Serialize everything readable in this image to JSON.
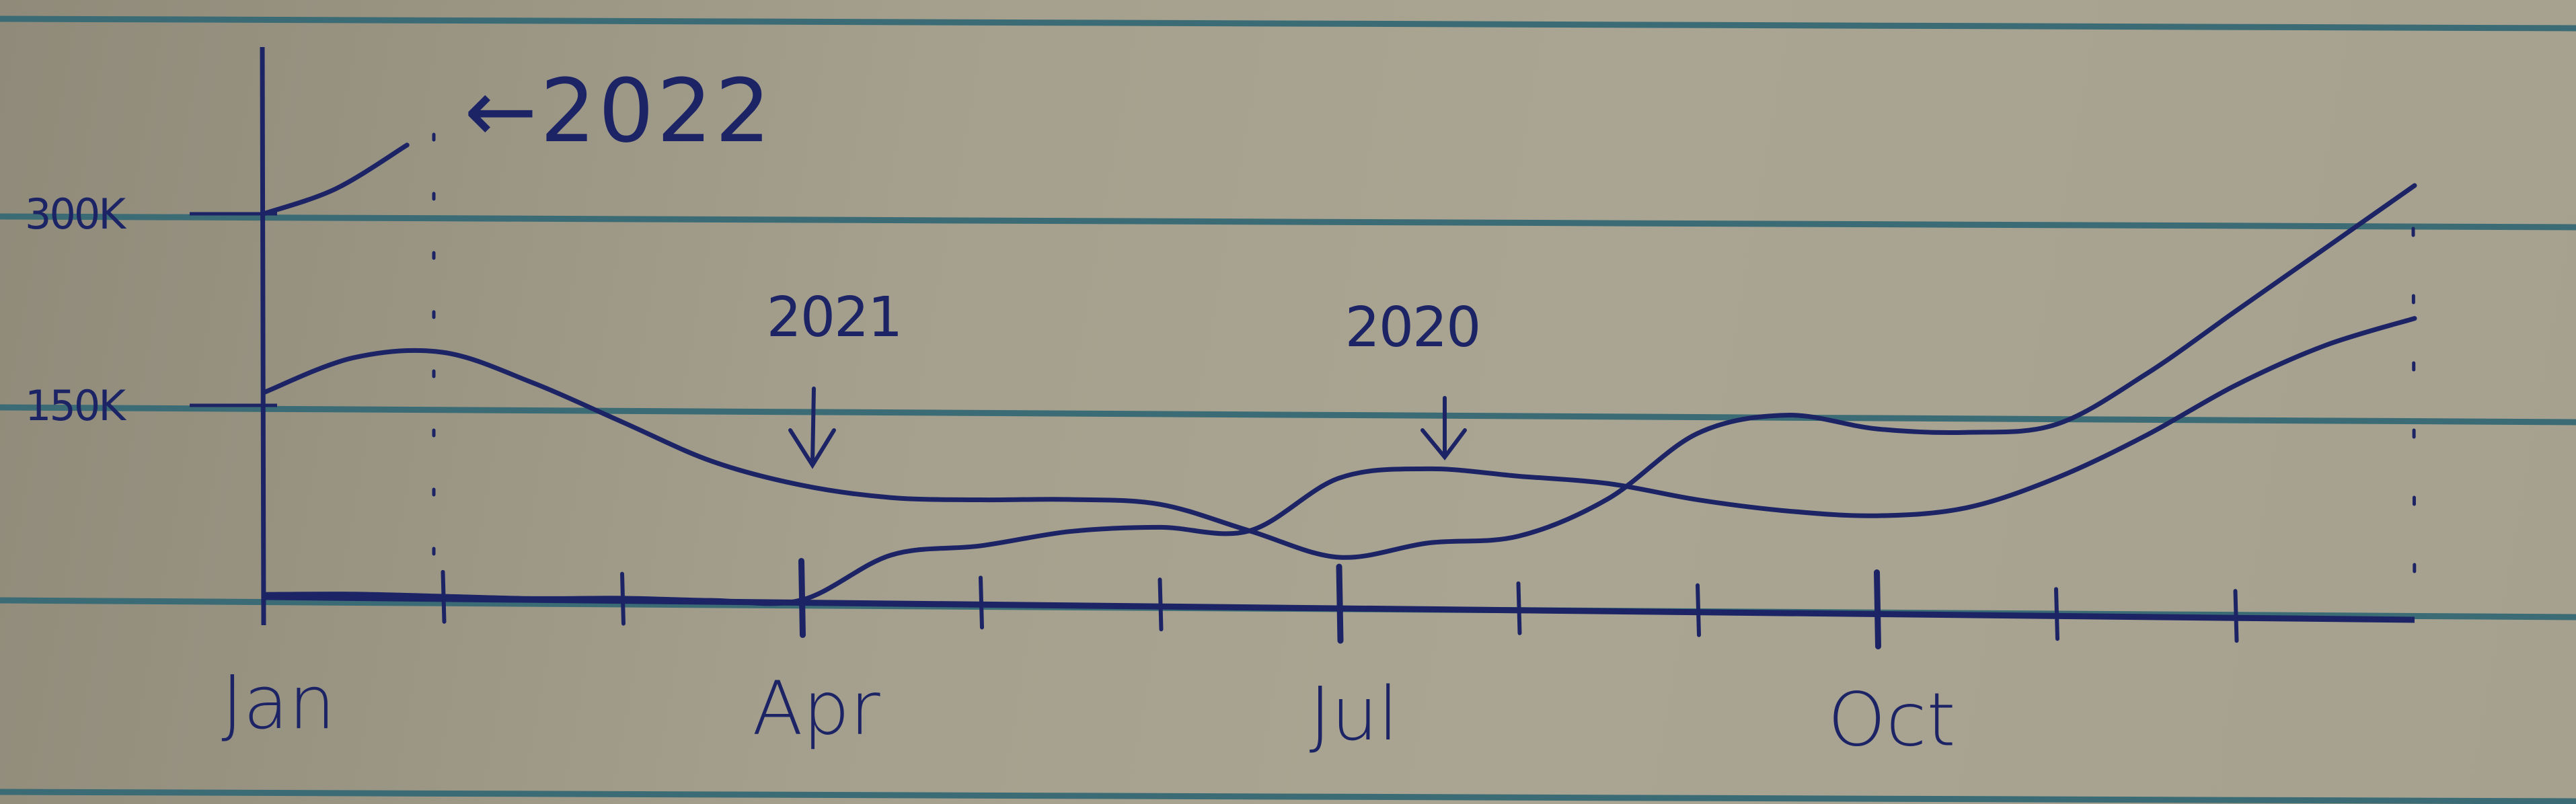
{
  "chart_data": {
    "type": "line",
    "title": "",
    "xlabel": "",
    "ylabel": "",
    "x": [
      0,
      0.5,
      1,
      1.5,
      2,
      2.5,
      3,
      3.5,
      4,
      4.5,
      5,
      5.5,
      6,
      6.5,
      7,
      7.5,
      8,
      8.5,
      9,
      9.5,
      10,
      10.5,
      11,
      11.5,
      12
    ],
    "x_ticks": [
      {
        "pos": 0,
        "label": "Jan"
      },
      {
        "pos": 3,
        "label": "Apr"
      },
      {
        "pos": 6,
        "label": "Jul"
      },
      {
        "pos": 9,
        "label": "Oct"
      }
    ],
    "y_ticks": [
      {
        "value": 150000,
        "label": "150K"
      },
      {
        "value": 300000,
        "label": "300K"
      }
    ],
    "xlim": [
      0,
      12
    ],
    "ylim": [
      0,
      340000
    ],
    "series": [
      {
        "name": "2022",
        "x": [
          0,
          0.4,
          0.8
        ],
        "values": [
          300000,
          320000,
          355000
        ]
      },
      {
        "name": "2021",
        "x": [
          0,
          0.5,
          1,
          1.5,
          2,
          2.5,
          3,
          3.5,
          4,
          4.5,
          5,
          5.5,
          6,
          6.5,
          7,
          7.5,
          8,
          8.5,
          9,
          9.5,
          10,
          10.5,
          11,
          11.5,
          12
        ],
        "values": [
          160000,
          188000,
          193000,
          170000,
          140000,
          110000,
          92000,
          83000,
          82000,
          83000,
          80000,
          60000,
          40000,
          52000,
          58000,
          88000,
          140000,
          155000,
          145000,
          143000,
          150000,
          190000,
          240000,
          290000,
          340000
        ]
      },
      {
        "name": "2020",
        "x": [
          0,
          0.5,
          1,
          1.5,
          2,
          2.5,
          3,
          3.5,
          4,
          4.5,
          5,
          5.5,
          6,
          6.5,
          7,
          7.5,
          8,
          8.5,
          9,
          9.5,
          10,
          10.5,
          11,
          11.5,
          12
        ],
        "values": [
          2000,
          3000,
          2000,
          1000,
          2000,
          1000,
          2000,
          38000,
          46000,
          58000,
          62000,
          60000,
          102000,
          110000,
          105000,
          100000,
          88000,
          80000,
          77000,
          84000,
          108000,
          142000,
          182000,
          214000,
          236000
        ]
      }
    ],
    "annotations": [
      {
        "text": "←2022",
        "series": "2022"
      },
      {
        "text": "2021",
        "series": "2021"
      },
      {
        "text": "2020",
        "series": "2020"
      }
    ],
    "colors": {
      "ink": "#1c2466",
      "rule": "#3f6b74",
      "paper": "#a6a18f"
    }
  }
}
